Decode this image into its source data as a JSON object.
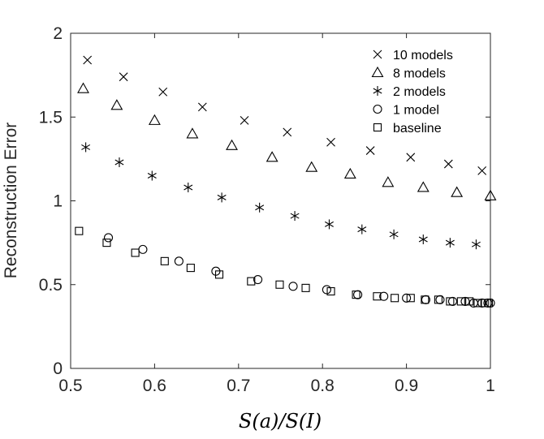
{
  "chart_data": {
    "type": "scatter",
    "xlabel": "S(a)/S(I)",
    "ylabel": "Reconstruction  Error",
    "xlim": [
      0.5,
      1
    ],
    "ylim": [
      0,
      2
    ],
    "x_ticks": [
      "0.5",
      "0.6",
      "0.7",
      "0.8",
      "0.9",
      "1"
    ],
    "y_ticks": [
      "0",
      "0.5",
      "1",
      "1.5",
      "2"
    ],
    "grid": false,
    "legend_position": "top-right",
    "series": [
      {
        "name": "10 models",
        "marker": "x",
        "x": [
          0.52,
          0.563,
          0.61,
          0.657,
          0.707,
          0.758,
          0.81,
          0.857,
          0.905,
          0.95,
          0.99
        ],
        "y": [
          1.84,
          1.74,
          1.65,
          1.56,
          1.48,
          1.41,
          1.35,
          1.3,
          1.26,
          1.22,
          1.18
        ]
      },
      {
        "name": "8 models",
        "marker": "triangle",
        "x": [
          0.515,
          0.555,
          0.6,
          0.645,
          0.692,
          0.74,
          0.787,
          0.833,
          0.878,
          0.92,
          0.96,
          1.0
        ],
        "y": [
          1.67,
          1.57,
          1.48,
          1.4,
          1.33,
          1.26,
          1.2,
          1.16,
          1.11,
          1.08,
          1.05,
          1.03
        ]
      },
      {
        "name": "2 models",
        "marker": "asterisk",
        "x": [
          0.518,
          0.558,
          0.597,
          0.64,
          0.68,
          0.725,
          0.767,
          0.808,
          0.847,
          0.885,
          0.92,
          0.952,
          0.983
        ],
        "y": [
          1.32,
          1.23,
          1.15,
          1.08,
          1.02,
          0.96,
          0.91,
          0.86,
          0.83,
          0.8,
          0.77,
          0.75,
          0.74
        ]
      },
      {
        "name": "1 model",
        "marker": "circle",
        "x": [
          0.545,
          0.586,
          0.629,
          0.673,
          0.723,
          0.765,
          0.805,
          0.842,
          0.873,
          0.9,
          0.923,
          0.94,
          0.955,
          0.97,
          0.98,
          0.99,
          0.997,
          1.0
        ],
        "y": [
          0.78,
          0.71,
          0.64,
          0.58,
          0.53,
          0.49,
          0.47,
          0.44,
          0.43,
          0.42,
          0.41,
          0.41,
          0.4,
          0.4,
          0.39,
          0.39,
          0.39,
          0.39
        ]
      },
      {
        "name": "baseline",
        "marker": "square",
        "x": [
          0.51,
          0.543,
          0.577,
          0.612,
          0.643,
          0.677,
          0.715,
          0.749,
          0.78,
          0.81,
          0.84,
          0.865,
          0.886,
          0.905,
          0.922,
          0.938,
          0.952,
          0.965,
          0.975,
          0.985,
          0.993,
          0.998
        ],
        "y": [
          0.82,
          0.75,
          0.69,
          0.64,
          0.6,
          0.56,
          0.52,
          0.5,
          0.48,
          0.46,
          0.44,
          0.43,
          0.42,
          0.42,
          0.41,
          0.41,
          0.4,
          0.4,
          0.4,
          0.39,
          0.39,
          0.39
        ]
      }
    ]
  }
}
